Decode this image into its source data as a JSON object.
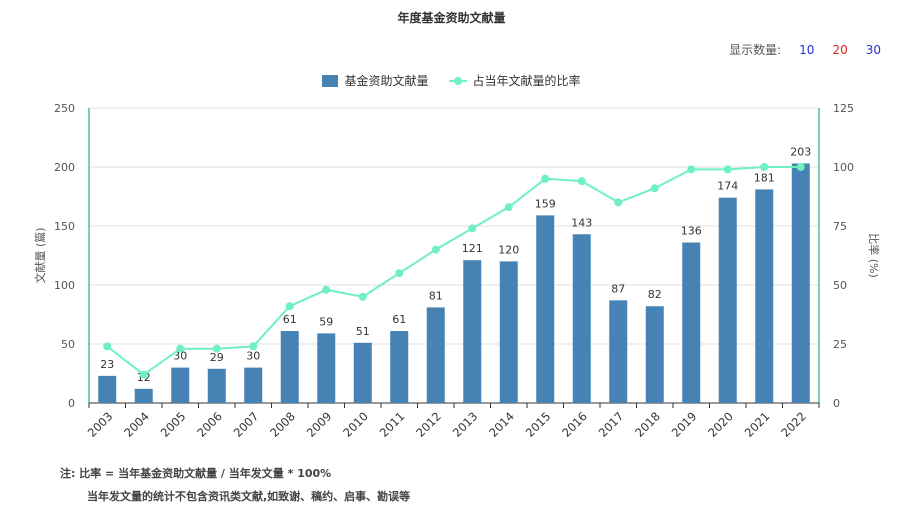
{
  "title": "年度基金资助文献量",
  "count_selector": {
    "label": "显示数量:",
    "options": [
      {
        "label": "10",
        "color": "#2233cc"
      },
      {
        "label": "20",
        "color": "#dd2222"
      },
      {
        "label": "30",
        "color": "#2233cc"
      }
    ]
  },
  "legend": {
    "bar_label": "基金资助文献量",
    "line_label": "占当年文献量的比率"
  },
  "notes": {
    "line1": "注:  比率 = 当年基金资助文献量 / 当年发文量 * 100%",
    "line2": "当年发文量的统计不包含资讯类文献,如致谢、稿约、启事、勘误等"
  },
  "colors": {
    "bar": "#4682b4",
    "line": "#6ff0c0",
    "axis": "#009688",
    "grid": "#e0e0e0"
  },
  "chart_data": {
    "type": "bar",
    "categories": [
      "2003",
      "2004",
      "2005",
      "2006",
      "2007",
      "2008",
      "2009",
      "2010",
      "2011",
      "2012",
      "2013",
      "2014",
      "2015",
      "2016",
      "2017",
      "2018",
      "2019",
      "2020",
      "2021",
      "2022"
    ],
    "series": [
      {
        "name": "基金资助文献量",
        "type": "bar",
        "values": [
          23,
          12,
          30,
          29,
          30,
          61,
          59,
          51,
          61,
          81,
          121,
          120,
          159,
          143,
          87,
          82,
          136,
          174,
          181,
          203
        ]
      },
      {
        "name": "占当年文献量的比率",
        "type": "line",
        "values": [
          24,
          12,
          23,
          23,
          24,
          41,
          48,
          45,
          55,
          65,
          74,
          83,
          95,
          94,
          85,
          91,
          99,
          99,
          100,
          100
        ]
      }
    ],
    "ylabel": "文献量 (篇)",
    "y2label": "比率 (%)",
    "ylim": [
      0,
      250
    ],
    "y2lim": [
      0,
      125
    ],
    "yticks": [
      0,
      50,
      100,
      150,
      200,
      250
    ],
    "y2ticks": [
      0,
      25,
      50,
      75,
      100,
      125
    ],
    "grid": true,
    "legend_position": "top-center"
  }
}
